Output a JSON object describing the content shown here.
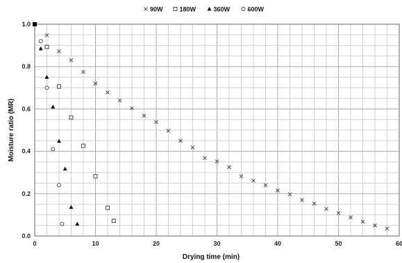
{
  "chart_data": {
    "type": "scatter",
    "xlabel": "Drying time (min)",
    "ylabel": "Moisture ratio (MR)",
    "xlim": [
      0,
      60
    ],
    "ylim": [
      0,
      1.0
    ],
    "xticks": [
      0,
      10,
      20,
      30,
      40,
      50,
      60
    ],
    "yticks": [
      0.0,
      0.2,
      0.4,
      0.6,
      0.8,
      1.0
    ],
    "xtick_labels": [
      "0",
      "10",
      "20",
      "30",
      "40",
      "50",
      "60"
    ],
    "ytick_labels": [
      "0.0",
      "0.2",
      "0.4",
      "0.6",
      "0.8",
      "1.0"
    ],
    "grid": true,
    "legend_position": "top",
    "series": [
      {
        "name": "90W",
        "marker": "x",
        "x": [
          0,
          2,
          4,
          6,
          8,
          10,
          12,
          14,
          16,
          18,
          20,
          22,
          24,
          26,
          28,
          30,
          32,
          34,
          36,
          38,
          40,
          42,
          44,
          46,
          48,
          50,
          52,
          54,
          56,
          58
        ],
        "y": [
          1.0,
          0.948,
          0.872,
          0.83,
          0.775,
          0.72,
          0.678,
          0.64,
          0.603,
          0.568,
          0.538,
          0.497,
          0.45,
          0.418,
          0.368,
          0.352,
          0.325,
          0.282,
          0.262,
          0.24,
          0.215,
          0.197,
          0.17,
          0.153,
          0.128,
          0.108,
          0.088,
          0.068,
          0.05,
          0.035
        ]
      },
      {
        "name": "180W",
        "marker": "square",
        "x": [
          0,
          2,
          4,
          6,
          8,
          10,
          12,
          13
        ],
        "y": [
          1.0,
          0.893,
          0.706,
          0.56,
          0.426,
          0.282,
          0.133,
          0.072
        ]
      },
      {
        "name": "360W",
        "marker": "triangle",
        "x": [
          0,
          1,
          2,
          3,
          4,
          5,
          6,
          7
        ],
        "y": [
          1.0,
          0.885,
          0.75,
          0.61,
          0.448,
          0.317,
          0.136,
          0.057
        ]
      },
      {
        "name": "600W",
        "marker": "circle",
        "x": [
          0,
          1,
          2,
          3,
          4,
          4.5
        ],
        "y": [
          1.0,
          0.92,
          0.7,
          0.41,
          0.24,
          0.057
        ]
      }
    ]
  }
}
